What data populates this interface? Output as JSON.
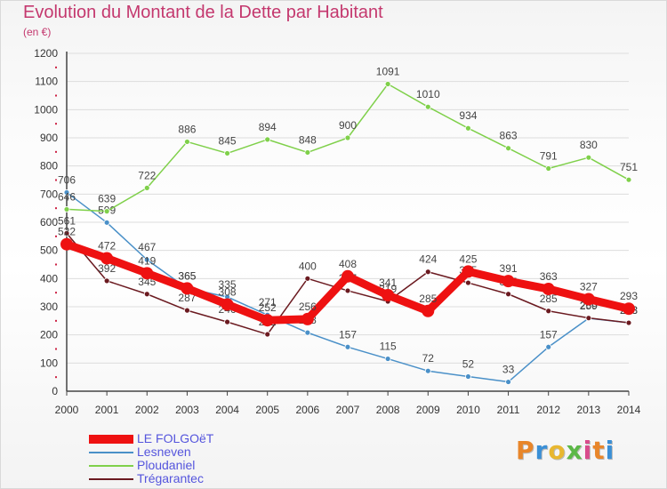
{
  "header": {
    "title": "Evolution du Montant de la Dette par Habitant",
    "subtitle": "(en €)"
  },
  "colors": {
    "title": "#c4386e",
    "legend_text": "#5555dd",
    "axis": "#444444",
    "grid": "#dddddd",
    "tick_marks": "#cc2244"
  },
  "logo": {
    "text": "Proxiti",
    "letters": [
      {
        "char": "P",
        "color": "#e8862a"
      },
      {
        "char": "r",
        "color": "#3a8fd6"
      },
      {
        "char": "o",
        "color": "#e8b730"
      },
      {
        "char": "x",
        "color": "#5cb847"
      },
      {
        "char": "i",
        "color": "#d94b8c"
      },
      {
        "char": "t",
        "color": "#e8862a"
      },
      {
        "char": "i",
        "color": "#3a8fd6"
      }
    ]
  },
  "chart_data": {
    "type": "line",
    "title": "Evolution du Montant de la Dette par Habitant",
    "subtitle": "(en €)",
    "x": [
      "2000",
      "2001",
      "2002",
      "2003",
      "2004",
      "2005",
      "2006",
      "2007",
      "2008",
      "2009",
      "2010",
      "2011",
      "2012",
      "2013",
      "2014"
    ],
    "ylim": [
      0,
      1200
    ],
    "yticks": [
      0,
      100,
      200,
      300,
      400,
      500,
      600,
      700,
      800,
      900,
      1000,
      1100,
      1200
    ],
    "grid": "horizontal",
    "legend_position": "bottom-left",
    "series": [
      {
        "name": "Lesneven",
        "color": "#4a90c8",
        "values": [
          706,
          599,
          467,
          365,
          335,
          271,
          208,
          157,
          115,
          72,
          52,
          33,
          157,
          259,
          243
        ]
      },
      {
        "name": "Ploudaniel",
        "color": "#7fd04a",
        "values": [
          646,
          639,
          722,
          886,
          845,
          894,
          848,
          900,
          1091,
          1010,
          934,
          863,
          791,
          830,
          751
        ]
      },
      {
        "name": "Trégarantec",
        "color": "#6b1a20",
        "values": [
          561,
          392,
          345,
          287,
          246,
          202,
          400,
          357,
          319,
          424,
          385,
          345,
          285,
          260,
          243
        ]
      },
      {
        "name": "LE FOLGOëT",
        "color": "#ee1111",
        "thick": true,
        "values": [
          522,
          472,
          419,
          365,
          308,
          252,
          256,
          408,
          341,
          285,
          425,
          391,
          363,
          327,
          293
        ]
      }
    ]
  },
  "legend": {
    "items": [
      {
        "name": "LE FOLGOëT",
        "color": "#ee1111",
        "width": 10
      },
      {
        "name": "Lesneven",
        "color": "#4a90c8",
        "width": 2
      },
      {
        "name": "Ploudaniel",
        "color": "#7fd04a",
        "width": 2
      },
      {
        "name": "Trégarantec",
        "color": "#6b1a20",
        "width": 2
      }
    ]
  }
}
